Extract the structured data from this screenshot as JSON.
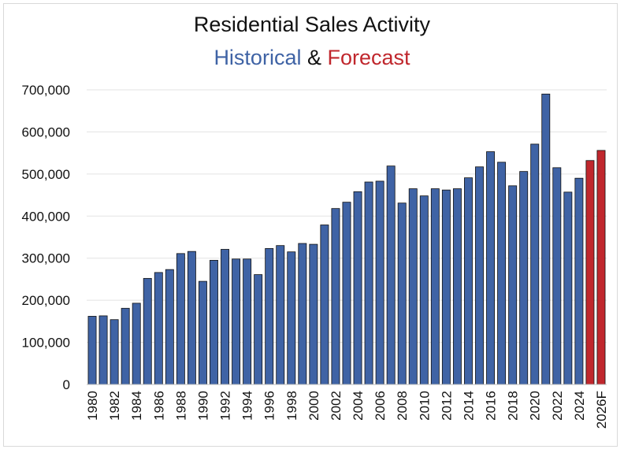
{
  "chart_data": {
    "type": "bar",
    "title": "Residential Sales Activity",
    "subtitle": {
      "historical": "Historical",
      "connector": "&",
      "forecast": "Forecast"
    },
    "colors": {
      "historical": "#3f63a5",
      "forecast": "#c0272d",
      "historical_text": "#3f63a5",
      "forecast_text": "#c0272d"
    },
    "ylim": [
      0,
      700000
    ],
    "yticks": [
      0,
      100000,
      200000,
      300000,
      400000,
      500000,
      600000,
      700000
    ],
    "ytick_labels": [
      "0",
      "100,000",
      "200,000",
      "300,000",
      "400,000",
      "500,000",
      "600,000",
      "700,000"
    ],
    "grid": true,
    "categories": [
      "1980",
      "1981",
      "1982",
      "1983",
      "1984",
      "1985",
      "1986",
      "1987",
      "1988",
      "1989",
      "1990",
      "1991",
      "1992",
      "1993",
      "1994",
      "1995",
      "1996",
      "1997",
      "1998",
      "1999",
      "2000",
      "2001",
      "2002",
      "2003",
      "2004",
      "2005",
      "2006",
      "2007",
      "2008",
      "2009",
      "2010",
      "2011",
      "2012",
      "2013",
      "2014",
      "2015",
      "2016",
      "2017",
      "2018",
      "2019",
      "2020",
      "2021",
      "2022",
      "2023",
      "2024",
      "2025",
      "2026F"
    ],
    "xtick_labels": [
      "1980",
      "",
      "1982",
      "",
      "1984",
      "",
      "1986",
      "",
      "1988",
      "",
      "1990",
      "",
      "1992",
      "",
      "1994",
      "",
      "1996",
      "",
      "1998",
      "",
      "2000",
      "",
      "2002",
      "",
      "2004",
      "",
      "2006",
      "",
      "2008",
      "",
      "2010",
      "",
      "2012",
      "",
      "2014",
      "",
      "2016",
      "",
      "2018",
      "",
      "2020",
      "",
      "2022",
      "",
      "2024",
      "",
      "2026F"
    ],
    "series": [
      {
        "values": [
          162000,
          163000,
          154000,
          181000,
          193000,
          252000,
          266000,
          273000,
          311000,
          316000,
          245000,
          295000,
          321000,
          298000,
          298000,
          261000,
          323000,
          330000,
          315000,
          335000,
          333000,
          379000,
          418000,
          433000,
          458000,
          481000,
          483000,
          519000,
          431000,
          465000,
          448000,
          465000,
          462000,
          465000,
          491000,
          517000,
          553000,
          528000,
          472000,
          506000,
          571000,
          690000,
          515000,
          457000,
          490000,
          532000,
          556000
        ]
      }
    ],
    "forecast_categories": [
      "2025",
      "2026F"
    ]
  }
}
